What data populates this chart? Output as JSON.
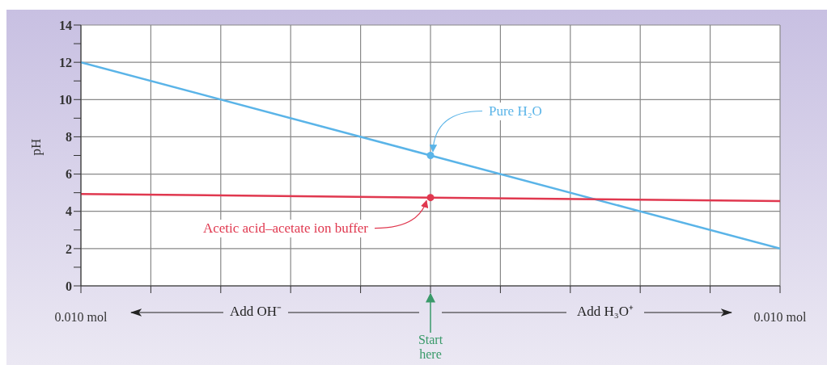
{
  "chart_data": {
    "type": "line",
    "ylabel": "pH",
    "xlim": [
      -0.01,
      0.01
    ],
    "xticks": [
      {
        "value": -0.01,
        "label": "0.010 mol"
      },
      {
        "value": -0.008,
        "label": null
      },
      {
        "value": -0.006,
        "label": null
      },
      {
        "value": -0.004,
        "label": null
      },
      {
        "value": -0.002,
        "label": null
      },
      {
        "value": 0,
        "label": null
      },
      {
        "value": 0.002,
        "label": null
      },
      {
        "value": 0.004,
        "label": null
      },
      {
        "value": 0.006,
        "label": null
      },
      {
        "value": 0.008,
        "label": null
      },
      {
        "value": 0.01,
        "label": "0.010 mol"
      }
    ],
    "ylim": [
      0,
      14
    ],
    "yticks": [
      0,
      {
        "value": 1,
        "label": null
      },
      2,
      {
        "value": 3,
        "label": null
      },
      4,
      {
        "value": 5,
        "label": null
      },
      6,
      {
        "value": 7,
        "label": null
      },
      8,
      {
        "value": 9,
        "label": null
      },
      10,
      {
        "value": 11,
        "label": null
      },
      12,
      {
        "value": 13,
        "label": null
      },
      14
    ],
    "grid": true,
    "series": [
      {
        "name": "Pure H₂O",
        "color": "#5ab4e8",
        "x": [
          -0.01,
          0,
          0.01
        ],
        "values": [
          12,
          7,
          2
        ]
      },
      {
        "name": "Acetic acid–acetate ion buffer",
        "color": "#e0384f",
        "x": [
          -0.01,
          0,
          0.01
        ],
        "values": [
          4.93,
          4.74,
          4.55
        ]
      },
      {
        "type": "scatter",
        "marker": "circle",
        "color": "#5ab4e8",
        "x": [
          0
        ],
        "values": [
          7
        ]
      },
      {
        "type": "scatter",
        "marker": "circle",
        "color": "#e0384f",
        "x": [
          0
        ],
        "values": [
          4.74
        ]
      }
    ],
    "annotations": [
      "Add OH⁻",
      "Add H₃O⁺",
      "Start here"
    ]
  }
}
